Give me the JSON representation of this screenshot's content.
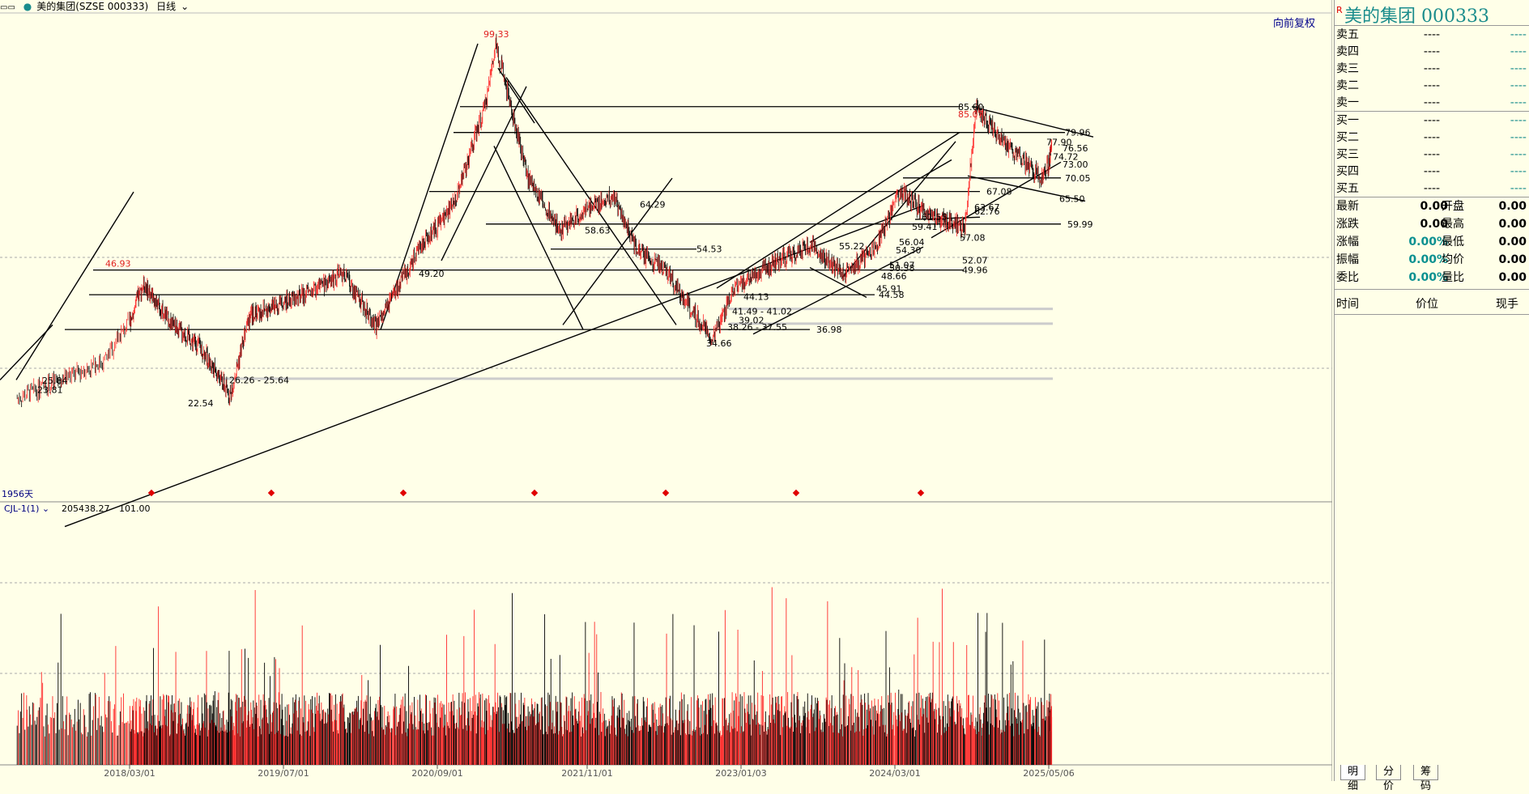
{
  "toolbar": {
    "window_icon": "window-icon",
    "stock_label": "美的集团(SZSE 000333)",
    "period_label": "日线",
    "adjust_label": "向前复权"
  },
  "colors": {
    "up": "#ff2a2a",
    "down": "#000000",
    "teal": "#1a8c8c",
    "accent": "#ff0000"
  },
  "main_chart": {
    "cycle_label": "1956天",
    "high_label": "99.33",
    "levels": [
      {
        "text": "85.60"
      },
      {
        "text": "85.07"
      },
      {
        "text": "79.96"
      },
      {
        "text": "77.90"
      },
      {
        "text": "76.56"
      },
      {
        "text": "74.72"
      },
      {
        "text": "73.00"
      },
      {
        "text": "70.05"
      },
      {
        "text": "67.08"
      },
      {
        "text": "65.50"
      },
      {
        "text": "64.29"
      },
      {
        "text": "63.67"
      },
      {
        "text": "62.76"
      },
      {
        "text": "61.55"
      },
      {
        "text": "59.99"
      },
      {
        "text": "59.41"
      },
      {
        "text": "58.63"
      },
      {
        "text": "57.08"
      },
      {
        "text": "56.04"
      },
      {
        "text": "55.22"
      },
      {
        "text": "54.53"
      },
      {
        "text": "54.30"
      },
      {
        "text": "52.07"
      },
      {
        "text": "51.07"
      },
      {
        "text": "50.38"
      },
      {
        "text": "49.96"
      },
      {
        "text": "49.20"
      },
      {
        "text": "48.66"
      },
      {
        "text": "46.93"
      },
      {
        "text": "45.91"
      },
      {
        "text": "44.58"
      },
      {
        "text": "44.13"
      },
      {
        "text": "41.49 - 41.02"
      },
      {
        "text": "39.02"
      },
      {
        "text": "38.26 - 37.55"
      },
      {
        "text": "36.98"
      },
      {
        "text": "34.66"
      },
      {
        "text": "26.26 - 25.64"
      },
      {
        "text": "25.84"
      },
      {
        "text": "23.81"
      },
      {
        "text": "22.54"
      }
    ]
  },
  "volume_chart": {
    "indicator_name": "CJL-1(1)",
    "values": [
      "205438.27",
      "101.00"
    ]
  },
  "x_axis": [
    "2018/03/01",
    "2019/07/01",
    "2020/09/01",
    "2021/11/01",
    "2023/01/03",
    "2024/03/01",
    "2025/05/06"
  ],
  "chart_data": {
    "type": "candlestick+volume",
    "title": "美的集团(SZSE 000333)",
    "x_ticks": [
      "2018/03/01",
      "2019/07/01",
      "2020/09/01",
      "2021/11/01",
      "2023/01/03",
      "2024/03/01",
      "2025/05/06"
    ],
    "price_path": [
      {
        "x": "2017/08",
        "y": 22.0
      },
      {
        "x": "2018/01",
        "y": 30.0
      },
      {
        "x": "2018/04",
        "y": 46.93
      },
      {
        "x": "2018/07",
        "y": 38.0
      },
      {
        "x": "2018/10",
        "y": 33.0
      },
      {
        "x": "2019/01",
        "y": 22.54
      },
      {
        "x": "2019/03",
        "y": 40.0
      },
      {
        "x": "2019/08",
        "y": 44.0
      },
      {
        "x": "2019/12",
        "y": 49.2
      },
      {
        "x": "2020/03",
        "y": 37.55
      },
      {
        "x": "2020/07",
        "y": 55.0
      },
      {
        "x": "2020/10",
        "y": 64.0
      },
      {
        "x": "2021/01",
        "y": 85.6
      },
      {
        "x": "2021/02",
        "y": 99.33
      },
      {
        "x": "2021/05",
        "y": 70.0
      },
      {
        "x": "2021/08",
        "y": 58.63
      },
      {
        "x": "2021/11",
        "y": 64.29
      },
      {
        "x": "2022/01",
        "y": 66.0
      },
      {
        "x": "2022/03",
        "y": 54.53
      },
      {
        "x": "2022/06",
        "y": 49.0
      },
      {
        "x": "2022/10",
        "y": 34.66
      },
      {
        "x": "2022/12",
        "y": 46.0
      },
      {
        "x": "2023/04",
        "y": 52.0
      },
      {
        "x": "2023/07",
        "y": 55.22
      },
      {
        "x": "2023/10",
        "y": 48.66
      },
      {
        "x": "2024/01",
        "y": 56.04
      },
      {
        "x": "2024/03",
        "y": 67.08
      },
      {
        "x": "2024/06",
        "y": 61.55
      },
      {
        "x": "2024/09",
        "y": 59.41
      },
      {
        "x": "2024/10",
        "y": 85.07
      },
      {
        "x": "2025/01",
        "y": 76.56
      },
      {
        "x": "2025/04",
        "y": 70.05
      },
      {
        "x": "2025/06",
        "y": 77.9
      }
    ]
  },
  "panel": {
    "flag": "R",
    "title": "美的集团  000333",
    "ask": [
      {
        "label": "卖五",
        "price": "----",
        "vol": "----"
      },
      {
        "label": "卖四",
        "price": "----",
        "vol": "----"
      },
      {
        "label": "卖三",
        "price": "----",
        "vol": "----"
      },
      {
        "label": "卖二",
        "price": "----",
        "vol": "----"
      },
      {
        "label": "卖一",
        "price": "----",
        "vol": "----"
      }
    ],
    "bid": [
      {
        "label": "买一",
        "price": "----",
        "vol": "----"
      },
      {
        "label": "买二",
        "price": "----",
        "vol": "----"
      },
      {
        "label": "买三",
        "price": "----",
        "vol": "----"
      },
      {
        "label": "买四",
        "price": "----",
        "vol": "----"
      },
      {
        "label": "买五",
        "price": "----",
        "vol": "----"
      }
    ],
    "quote": [
      {
        "l1": "最新",
        "v1": "0.00",
        "l2": "开盘",
        "v2": "0.00"
      },
      {
        "l1": "涨跌",
        "v1": "0.00",
        "l2": "最高",
        "v2": "0.00"
      },
      {
        "l1": "涨幅",
        "v1": "0.00%",
        "l2": "最低",
        "v2": "0.00"
      },
      {
        "l1": "振幅",
        "v1": "0.00%",
        "l2": "均价",
        "v2": "0.00"
      },
      {
        "l1": "委比",
        "v1": "0.00%",
        "l2": "量比",
        "v2": "0.00"
      }
    ],
    "ticks_header": {
      "time": "时间",
      "price": "价位",
      "volume": "现手"
    },
    "tabs": [
      "明细",
      "分价",
      "筹码"
    ]
  }
}
